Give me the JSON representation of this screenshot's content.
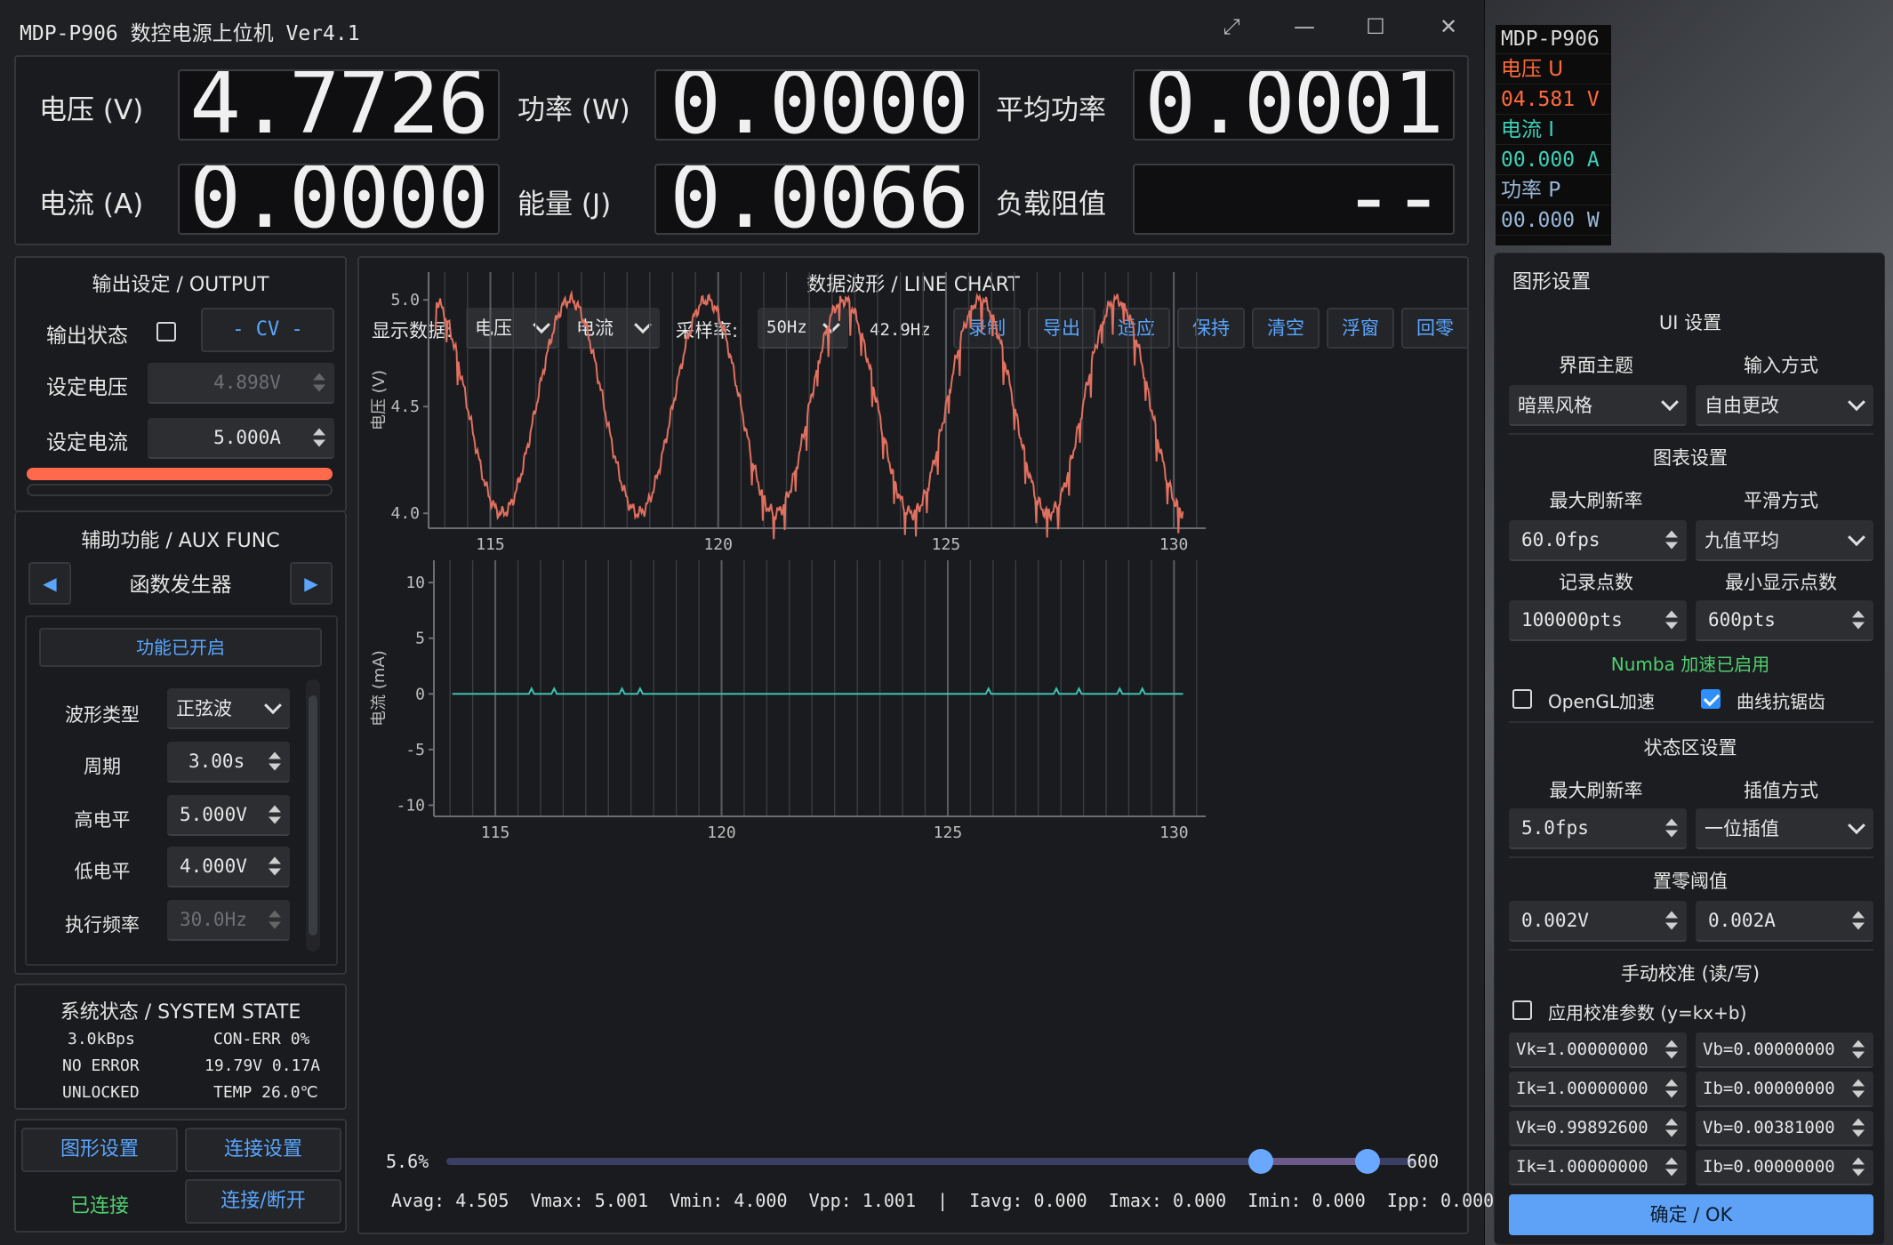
{
  "window": {
    "title": "MDP-P906 数控电源上位机 Ver4.1",
    "maximize_glyph": "⤢",
    "minimize_glyph": "—",
    "restore_glyph": "☐",
    "close_glyph": "✕"
  },
  "meters": {
    "voltage": {
      "label": "电压 (V)",
      "value": "4.7726"
    },
    "power": {
      "label": "功率 (W)",
      "value": "0.0000"
    },
    "avg_power": {
      "label": "平均功率",
      "value": "0.0001"
    },
    "current": {
      "label": "电流 (A)",
      "value": "0.0000"
    },
    "energy": {
      "label": "能量 (J)",
      "value": "0.0066"
    },
    "load": {
      "label": "负载阻值",
      "value": "--"
    }
  },
  "mini_monitor": {
    "device": "MDP-P906",
    "u_label": "电压 U",
    "u_value": "04.581 V",
    "i_label": "电流 I",
    "i_value": "00.000 A",
    "p_label": "功率 P",
    "p_value": "00.000 W",
    "u_color": "#ff6a3d",
    "i_color": "#3fd0b8"
  },
  "output": {
    "title": "输出设定 / OUTPUT",
    "state_label": "输出状态",
    "mode": "- CV -",
    "set_v_label": "设定电压",
    "set_v": "4.898V",
    "set_i_label": "设定电流",
    "set_i": "5.000A",
    "bar_color": "#ff6a4d"
  },
  "aux": {
    "title": "辅助功能 / AUX FUNC",
    "func_name": "函数发生器",
    "enabled_btn": "功能已开启",
    "wave_label": "波形类型",
    "wave": "正弦波",
    "period_label": "周期",
    "period": "3.00s",
    "high_label": "高电平",
    "high": "5.000V",
    "low_label": "低电平",
    "low": "4.000V",
    "rate_label": "执行频率",
    "rate": "30.0Hz"
  },
  "system": {
    "title": "系统状态 / SYSTEM STATE",
    "rate": "3.0kBps",
    "conerr": "CON-ERR 0%",
    "error": "NO ERROR",
    "vi": "19.79V 0.17A",
    "lock": "UNLOCKED",
    "temp": "TEMP 26.0℃"
  },
  "bottom_buttons": {
    "graph": "图形设置",
    "conn": "连接设置",
    "status": "已连接",
    "toggle": "连接/断开"
  },
  "chart_header": {
    "title": "数据波形 / LINE CHART",
    "show_label": "显示数据:",
    "sel1": "电压",
    "sel2": "电流",
    "rate_label": "采样率:",
    "rate": "50Hz",
    "actual": "42.9Hz",
    "buttons": [
      "录制",
      "导出",
      "适应",
      "保持",
      "清空",
      "浮窗",
      "回零"
    ]
  },
  "chart_data": [
    {
      "type": "line",
      "title": "",
      "ylabel": "电压 (V)",
      "xlabel": "",
      "x_ticks": [
        "115",
        "120",
        "125",
        "130"
      ],
      "y_ticks": [
        "5.0",
        "4.5",
        "4.0"
      ],
      "xlim": [
        113.8,
        130.7
      ],
      "ylim": [
        3.93,
        5.13
      ],
      "series": [
        {
          "name": "",
          "color": "#e07060",
          "period_s": 3.0,
          "min": 4.0,
          "max": 5.0,
          "peaks_x": [
            116.75,
            119.75,
            122.75,
            125.75,
            128.75
          ]
        }
      ]
    },
    {
      "type": "line",
      "title": "",
      "ylabel": "电流 (mA)",
      "xlabel": "",
      "x_ticks": [
        "115",
        "120",
        "125",
        "130"
      ],
      "y_ticks": [
        "10",
        "5",
        "0",
        "-5",
        "-10"
      ],
      "xlim": [
        113.8,
        130.7
      ],
      "ylim": [
        -11,
        12
      ],
      "series": [
        {
          "name": "",
          "color": "#3fc0b0",
          "value": 0,
          "spikes_x": [
            115.8,
            116.3,
            117.8,
            118.2,
            125.9,
            127.4,
            127.9,
            128.8,
            129.3
          ]
        }
      ]
    }
  ],
  "slider": {
    "left_label": "5.6%",
    "right_label": "600",
    "lower": 0.84,
    "upper": 0.95
  },
  "stats": "Avag: 4.505  Vmax: 5.001  Vmin: 4.000  Vpp: 1.001  |  Iavg: 0.000  Imax: 0.000  Imin: 0.000  Ipp: 0.000",
  "settings": {
    "title": "图形设置",
    "ui": "UI 设置",
    "theme_label": "界面主题",
    "theme": "暗黑风格",
    "input_label": "输入方式",
    "input": "自由更改",
    "chart": "图表设置",
    "maxfps_label": "最大刷新率",
    "maxfps": "60.0fps",
    "smooth_label": "平滑方式",
    "smooth": "九值平均",
    "rec_label": "记录点数",
    "rec": "100000pts",
    "minpts_label": "最小显示点数",
    "minpts": "600pts",
    "numba": "Numba 加速已启用",
    "opengl": "OpenGL加速",
    "aa": "曲线抗锯齿",
    "state": "状态区设置",
    "sfps_label": "最大刷新率",
    "sfps": "5.0fps",
    "interp_label": "插值方式",
    "interp": "一位插值",
    "zero": "置零阈值",
    "zv": "0.002V",
    "zi": "0.002A",
    "cal": "手动校准 (读/写)",
    "cal_apply": "应用校准参数 (y=kx+b)",
    "vk1": "Vk=1.00000000",
    "vb1": "Vb=0.00000000",
    "ik1": "Ik=1.00000000",
    "ib1": "Ib=0.00000000",
    "vk2": "Vk=0.99892600",
    "vb2": "Vb=0.00381000",
    "ik2": "Ik=1.00000000",
    "ib2": "Ib=0.00000000",
    "ok": "确定 / OK"
  }
}
